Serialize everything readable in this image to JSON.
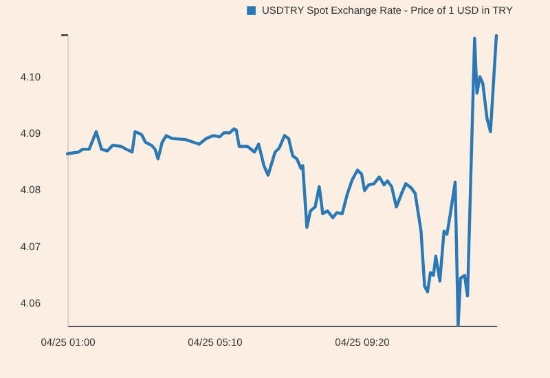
{
  "chart_data": {
    "type": "line",
    "x": [
      "--04-25T01:00",
      "--04-25T01:19",
      "--04-25T01:26",
      "--04-25T01:37",
      "--04-25T01:49",
      "--04-25T01:58",
      "--04-25T02:08",
      "--04-25T02:17",
      "--04-25T02:31",
      "--04-25T02:40",
      "--04-25T02:50",
      "--04-25T02:55",
      "--04-25T03:06",
      "--04-25T03:13",
      "--04-25T03:23",
      "--04-25T03:29",
      "--04-25T03:34",
      "--04-25T03:41",
      "--04-25T03:48",
      "--04-25T03:58",
      "--04-25T04:21",
      "--04-25T04:44",
      "--04-25T04:56",
      "--04-25T05:08",
      "--04-25T05:19",
      "--04-25T05:26",
      "--04-25T05:36",
      "--04-25T05:43",
      "--04-25T05:47",
      "--04-25T05:52",
      "--04-25T06:06",
      "--04-25T06:18",
      "--04-25T06:25",
      "--04-25T06:34",
      "--04-25T06:41",
      "--04-25T06:53",
      "--04-25T07:00",
      "--04-25T07:09",
      "--04-25T07:16",
      "--04-25T07:23",
      "--04-25T07:30",
      "--04-25T07:37",
      "--04-25T07:40",
      "--04-25T07:47",
      "--04-25T07:53",
      "--04-25T08:01",
      "--04-25T08:08",
      "--04-25T08:14",
      "--04-25T08:22",
      "--04-25T08:31",
      "--04-25T08:38",
      "--04-25T08:47",
      "--04-25T08:56",
      "--04-25T09:04",
      "--04-25T09:13",
      "--04-25T09:20",
      "--04-25T09:25",
      "--04-25T09:32",
      "--04-25T09:41",
      "--04-25T09:50",
      "--04-25T09:58",
      "--04-25T10:04",
      "--04-25T10:11",
      "--04-25T10:19",
      "--04-25T10:28",
      "--04-25T10:35",
      "--04-25T10:44",
      "--04-25T10:51",
      "--04-25T11:01",
      "--04-25T11:07",
      "--04-25T11:12",
      "--04-25T11:17",
      "--04-25T11:22",
      "--04-25T11:26",
      "--04-25T11:33",
      "--04-25T11:40",
      "--04-25T11:45",
      "--04-25T11:50",
      "--04-25T11:59",
      "--04-25T12:04",
      "--04-25T12:08",
      "--04-25T12:15",
      "--04-25T12:20",
      "--04-25T12:32",
      "--04-25T12:36",
      "--04-25T12:41",
      "--04-25T12:46",
      "--04-25T12:53",
      "--04-25T12:59",
      "--04-25T13:09"
    ],
    "series": [
      {
        "name": "USDTRY Spot Exchange Rate - Price of 1 USD in TRY",
        "color": "#2a78b5",
        "values": [
          4.0864,
          4.0867,
          4.0872,
          4.0872,
          4.0903,
          4.0872,
          4.0869,
          4.0879,
          4.0877,
          4.0872,
          4.0867,
          4.0903,
          4.0898,
          4.0884,
          4.0879,
          4.0872,
          4.0855,
          4.0884,
          4.0896,
          4.0891,
          4.0889,
          4.0881,
          4.0891,
          4.0896,
          4.0894,
          4.0901,
          4.0901,
          4.0908,
          4.0906,
          4.0877,
          4.0877,
          4.0867,
          4.0881,
          4.0843,
          4.0826,
          4.0867,
          4.0874,
          4.0896,
          4.0891,
          4.086,
          4.0855,
          4.0838,
          4.0843,
          4.0734,
          4.0763,
          4.077,
          4.0806,
          4.0758,
          4.0763,
          4.0751,
          4.076,
          4.0758,
          4.0794,
          4.0818,
          4.0835,
          4.0828,
          4.0799,
          4.0809,
          4.0811,
          4.0823,
          4.0809,
          4.0816,
          4.0806,
          4.077,
          4.0794,
          4.0811,
          4.0804,
          4.0794,
          4.0727,
          4.063,
          4.062,
          4.0654,
          4.0649,
          4.0683,
          4.0639,
          4.0727,
          4.0722,
          4.0753,
          4.0814,
          4.056,
          4.0644,
          4.0649,
          4.0613,
          4.1068,
          4.0971,
          4.1,
          4.0988,
          4.0927,
          4.0903,
          4.1073
        ]
      }
    ],
    "xlim": [
      "--04-25T01:00",
      "--04-25T13:09"
    ],
    "xticks": [
      {
        "value": "--04-25T01:00",
        "label": "04/25 01:00"
      },
      {
        "value": "--04-25T05:10",
        "label": "04/25 05:10"
      },
      {
        "value": "--04-25T09:20",
        "label": "04/25 09:20"
      }
    ],
    "ylim": [
      4.056,
      4.1075
    ],
    "yticks": [
      4.06,
      4.07,
      4.08,
      4.09,
      {
        "value": 4.1,
        "label": "4.10"
      },
      {
        "value": 4.1075,
        "label": null
      }
    ],
    "legend": "top right",
    "line_style": "solid"
  }
}
